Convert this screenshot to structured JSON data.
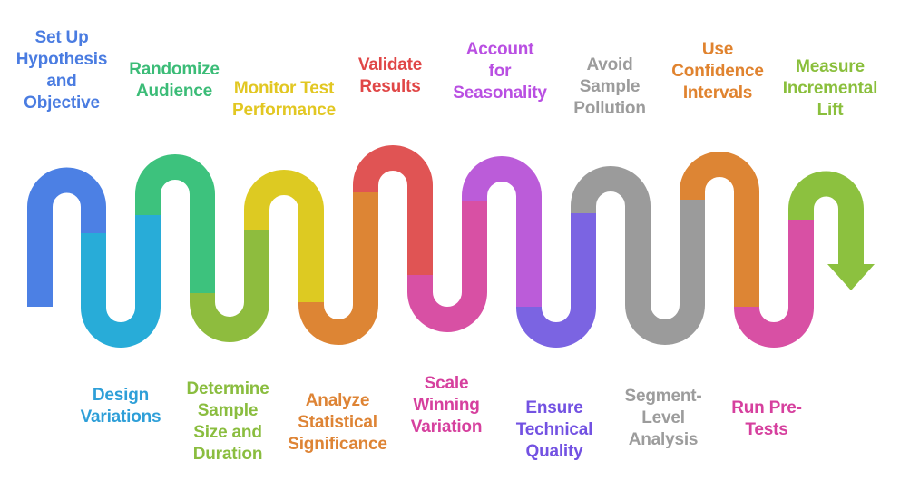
{
  "flow": {
    "background": "#ffffff",
    "arrow_color": "#8cc13f",
    "steps": [
      {
        "label": "Set Up\nHypothesis\nand\nObjective",
        "side": "top",
        "path_color": "#4c80e4",
        "label_color": "#4a7ce1"
      },
      {
        "label": "Design\nVariations",
        "side": "bottom",
        "path_color": "#28acd8",
        "label_color": "#2e9fd8"
      },
      {
        "label": "Randomize\nAudience",
        "side": "top",
        "path_color": "#3dc27d",
        "label_color": "#3bbc77"
      },
      {
        "label": "Determine\nSample\nSize and\nDuration",
        "side": "bottom",
        "path_color": "#8ebc3e",
        "label_color": "#8abd3f"
      },
      {
        "label": "Monitor Test\nPerformance",
        "side": "top",
        "path_color": "#ddca22",
        "label_color": "#e2c722"
      },
      {
        "label": "Analyze\nStatistical\nSignificance",
        "side": "bottom",
        "path_color": "#dd8534",
        "label_color": "#de8435"
      },
      {
        "label": "Validate\nResults",
        "side": "top",
        "path_color": "#e05454",
        "label_color": "#e04747"
      },
      {
        "label": "Scale\nWinning\nVariation",
        "side": "bottom",
        "path_color": "#d850a4",
        "label_color": "#d6409e"
      },
      {
        "label": "Account\nfor\nSeasonality",
        "side": "top",
        "path_color": "#bb5cd9",
        "label_color": "#b94fe2"
      },
      {
        "label": "Ensure\nTechnical\nQuality",
        "side": "bottom",
        "path_color": "#7b64e2",
        "label_color": "#7352e2"
      },
      {
        "label": "Avoid\nSample\nPollution",
        "side": "top",
        "path_color": "#9b9b9b",
        "label_color": "#9c9c9c"
      },
      {
        "label": "Segment-\nLevel\nAnalysis",
        "side": "bottom",
        "path_color": "#9b9b9b",
        "label_color": "#9c9c9c"
      },
      {
        "label": "Use\nConfidence\nIntervals",
        "side": "top",
        "path_color": "#dd8534",
        "label_color": "#e0832f"
      },
      {
        "label": "Run Pre-\nTests",
        "side": "bottom",
        "path_color": "#d850a4",
        "label_color": "#d6409e"
      },
      {
        "label": "Measure\nIncremental\nLift",
        "side": "top",
        "path_color": "#8cc13f",
        "label_color": "#8abf3c"
      }
    ]
  }
}
